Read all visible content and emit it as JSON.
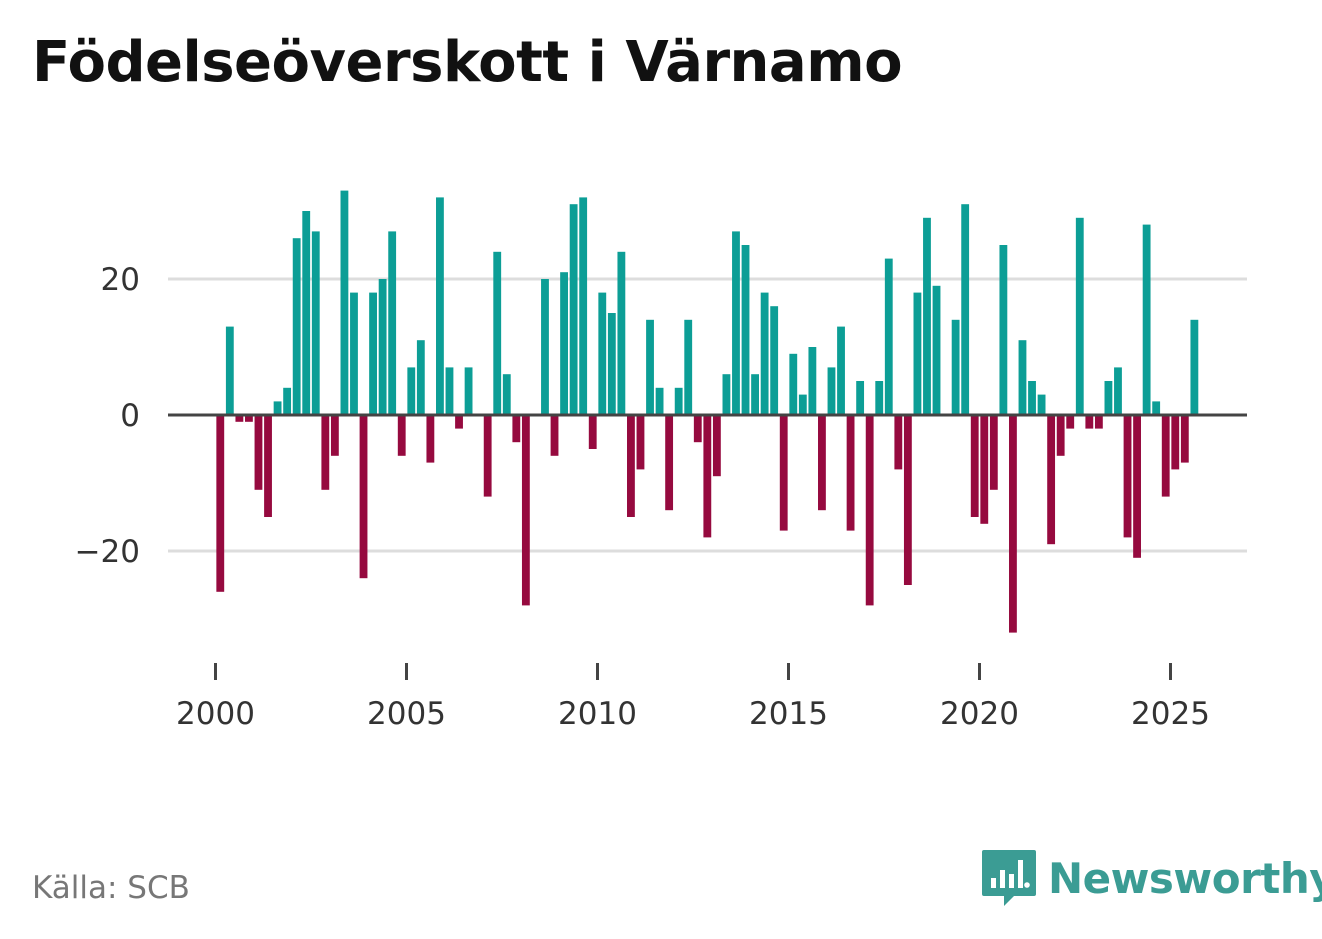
{
  "title": "Födelseöverskott i Värnamo",
  "source": "Källa: SCB",
  "brand": {
    "name": "Newsworthy",
    "icon": "newsworthy-logo-icon"
  },
  "colors": {
    "positive": "#0c9e96",
    "negative": "#960a3f",
    "baseline": "#444444",
    "grid": "#dddddd",
    "brand": "#3b9c94"
  },
  "chart_data": {
    "type": "bar",
    "title": "Födelseöverskott i Värnamo",
    "xlabel": "",
    "ylabel": "",
    "x_start": 2000.0,
    "x_step": 0.25,
    "xlim": [
      1999.0,
      2027.0
    ],
    "ylim": [
      -36,
      36
    ],
    "yticks": [
      -20,
      0,
      20
    ],
    "ytick_labels": [
      "−20",
      "0",
      "20"
    ],
    "xticks": [
      2000,
      2005,
      2010,
      2015,
      2020,
      2025
    ],
    "xtick_labels": [
      "2000",
      "2005",
      "2010",
      "2015",
      "2020",
      "2025"
    ],
    "grid": true,
    "values": [
      -26,
      13,
      -1,
      -1,
      -11,
      -15,
      2,
      4,
      26,
      30,
      27,
      -11,
      -6,
      33,
      18,
      -24,
      18,
      20,
      27,
      -6,
      7,
      11,
      -7,
      32,
      7,
      -2,
      7,
      0,
      -12,
      24,
      6,
      -4,
      -28,
      0,
      20,
      -6,
      21,
      31,
      32,
      -5,
      18,
      15,
      24,
      -15,
      -8,
      14,
      4,
      -14,
      4,
      14,
      -4,
      -18,
      -9,
      6,
      27,
      25,
      6,
      18,
      16,
      -17,
      9,
      3,
      10,
      -14,
      7,
      13,
      -17,
      5,
      -28,
      5,
      23,
      -8,
      -25,
      18,
      29,
      19,
      0,
      14,
      31,
      -15,
      -16,
      -11,
      25,
      -32,
      11,
      5,
      3,
      -19,
      -6,
      -2,
      29,
      -2,
      -2,
      5,
      7,
      -18,
      -21,
      28,
      2,
      -12,
      -8,
      -7,
      14
    ]
  }
}
